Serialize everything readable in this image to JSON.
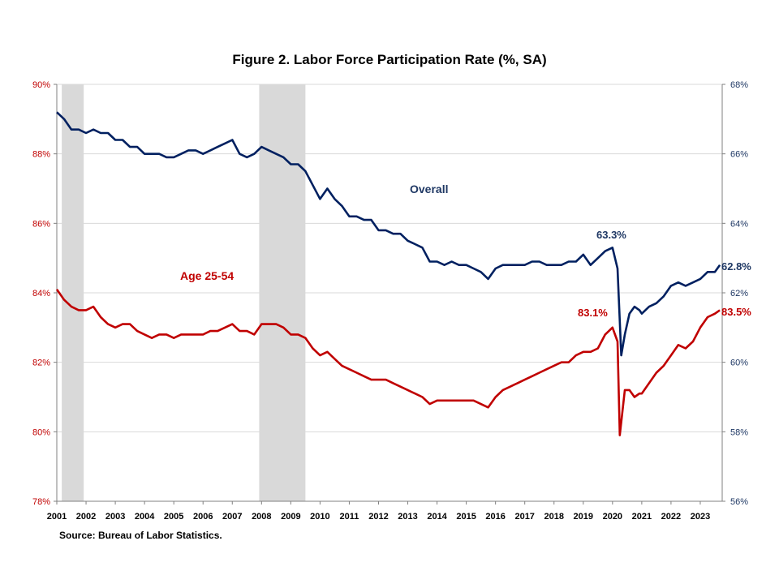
{
  "chart_data": {
    "type": "line",
    "title": "Figure 2. Labor Force Participation  Rate (%, SA)",
    "source": "Source: Bureau of Labor Statistics.",
    "x_ticks": [
      "2001",
      "2002",
      "2003",
      "2004",
      "2005",
      "2006",
      "2007",
      "2008",
      "2009",
      "2010",
      "2011",
      "2012",
      "2013",
      "2014",
      "2015",
      "2016",
      "2017",
      "2018",
      "2019",
      "2020",
      "2021",
      "2022",
      "2023"
    ],
    "y_left": {
      "range": [
        78,
        90
      ],
      "ticks": [
        "78%",
        "80%",
        "82%",
        "84%",
        "86%",
        "88%",
        "90%"
      ],
      "color": "#c00000"
    },
    "y_right": {
      "range": [
        56,
        68
      ],
      "ticks": [
        "56%",
        "58%",
        "60%",
        "62%",
        "64%",
        "66%",
        "68%"
      ],
      "color": "#1f3864"
    },
    "recessions": [
      {
        "start": 2001.17,
        "end": 2001.92
      },
      {
        "start": 2007.92,
        "end": 2009.5
      }
    ],
    "grid": true,
    "series": [
      {
        "name": "Overall",
        "axis": "right",
        "color": "#002060",
        "points": [
          [
            2001.0,
            67.2
          ],
          [
            2001.25,
            67.0
          ],
          [
            2001.5,
            66.7
          ],
          [
            2001.75,
            66.7
          ],
          [
            2002.0,
            66.6
          ],
          [
            2002.25,
            66.7
          ],
          [
            2002.5,
            66.6
          ],
          [
            2002.75,
            66.6
          ],
          [
            2003.0,
            66.4
          ],
          [
            2003.25,
            66.4
          ],
          [
            2003.5,
            66.2
          ],
          [
            2003.75,
            66.2
          ],
          [
            2004.0,
            66.0
          ],
          [
            2004.25,
            66.0
          ],
          [
            2004.5,
            66.0
          ],
          [
            2004.75,
            65.9
          ],
          [
            2005.0,
            65.9
          ],
          [
            2005.25,
            66.0
          ],
          [
            2005.5,
            66.1
          ],
          [
            2005.75,
            66.1
          ],
          [
            2006.0,
            66.0
          ],
          [
            2006.25,
            66.1
          ],
          [
            2006.5,
            66.2
          ],
          [
            2006.75,
            66.3
          ],
          [
            2007.0,
            66.4
          ],
          [
            2007.25,
            66.0
          ],
          [
            2007.5,
            65.9
          ],
          [
            2007.75,
            66.0
          ],
          [
            2008.0,
            66.2
          ],
          [
            2008.25,
            66.1
          ],
          [
            2008.5,
            66.0
          ],
          [
            2008.75,
            65.9
          ],
          [
            2009.0,
            65.7
          ],
          [
            2009.25,
            65.7
          ],
          [
            2009.5,
            65.5
          ],
          [
            2009.75,
            65.1
          ],
          [
            2010.0,
            64.7
          ],
          [
            2010.25,
            65.0
          ],
          [
            2010.5,
            64.7
          ],
          [
            2010.75,
            64.5
          ],
          [
            2011.0,
            64.2
          ],
          [
            2011.25,
            64.2
          ],
          [
            2011.5,
            64.1
          ],
          [
            2011.75,
            64.1
          ],
          [
            2012.0,
            63.8
          ],
          [
            2012.25,
            63.8
          ],
          [
            2012.5,
            63.7
          ],
          [
            2012.75,
            63.7
          ],
          [
            2013.0,
            63.5
          ],
          [
            2013.25,
            63.4
          ],
          [
            2013.5,
            63.3
          ],
          [
            2013.75,
            62.9
          ],
          [
            2014.0,
            62.9
          ],
          [
            2014.25,
            62.8
          ],
          [
            2014.5,
            62.9
          ],
          [
            2014.75,
            62.8
          ],
          [
            2015.0,
            62.8
          ],
          [
            2015.25,
            62.7
          ],
          [
            2015.5,
            62.6
          ],
          [
            2015.75,
            62.4
          ],
          [
            2016.0,
            62.7
          ],
          [
            2016.25,
            62.8
          ],
          [
            2016.5,
            62.8
          ],
          [
            2016.75,
            62.8
          ],
          [
            2017.0,
            62.8
          ],
          [
            2017.25,
            62.9
          ],
          [
            2017.5,
            62.9
          ],
          [
            2017.75,
            62.8
          ],
          [
            2018.0,
            62.8
          ],
          [
            2018.25,
            62.8
          ],
          [
            2018.5,
            62.9
          ],
          [
            2018.75,
            62.9
          ],
          [
            2019.0,
            63.1
          ],
          [
            2019.25,
            62.8
          ],
          [
            2019.5,
            63.0
          ],
          [
            2019.75,
            63.2
          ],
          [
            2020.0,
            63.3
          ],
          [
            2020.17,
            62.7
          ],
          [
            2020.3,
            60.2
          ],
          [
            2020.42,
            60.8
          ],
          [
            2020.58,
            61.4
          ],
          [
            2020.75,
            61.6
          ],
          [
            2020.92,
            61.5
          ],
          [
            2021.0,
            61.4
          ],
          [
            2021.25,
            61.6
          ],
          [
            2021.5,
            61.7
          ],
          [
            2021.75,
            61.9
          ],
          [
            2022.0,
            62.2
          ],
          [
            2022.25,
            62.3
          ],
          [
            2022.5,
            62.2
          ],
          [
            2022.75,
            62.3
          ],
          [
            2023.0,
            62.4
          ],
          [
            2023.25,
            62.6
          ],
          [
            2023.5,
            62.6
          ],
          [
            2023.67,
            62.8
          ]
        ]
      },
      {
        "name": "Age 25-54",
        "axis": "left",
        "color": "#c00000",
        "points": [
          [
            2001.0,
            84.1
          ],
          [
            2001.25,
            83.8
          ],
          [
            2001.5,
            83.6
          ],
          [
            2001.75,
            83.5
          ],
          [
            2002.0,
            83.5
          ],
          [
            2002.25,
            83.6
          ],
          [
            2002.5,
            83.3
          ],
          [
            2002.75,
            83.1
          ],
          [
            2003.0,
            83.0
          ],
          [
            2003.25,
            83.1
          ],
          [
            2003.5,
            83.1
          ],
          [
            2003.75,
            82.9
          ],
          [
            2004.0,
            82.8
          ],
          [
            2004.25,
            82.7
          ],
          [
            2004.5,
            82.8
          ],
          [
            2004.75,
            82.8
          ],
          [
            2005.0,
            82.7
          ],
          [
            2005.25,
            82.8
          ],
          [
            2005.5,
            82.8
          ],
          [
            2005.75,
            82.8
          ],
          [
            2006.0,
            82.8
          ],
          [
            2006.25,
            82.9
          ],
          [
            2006.5,
            82.9
          ],
          [
            2006.75,
            83.0
          ],
          [
            2007.0,
            83.1
          ],
          [
            2007.25,
            82.9
          ],
          [
            2007.5,
            82.9
          ],
          [
            2007.75,
            82.8
          ],
          [
            2008.0,
            83.1
          ],
          [
            2008.25,
            83.1
          ],
          [
            2008.5,
            83.1
          ],
          [
            2008.75,
            83.0
          ],
          [
            2009.0,
            82.8
          ],
          [
            2009.25,
            82.8
          ],
          [
            2009.5,
            82.7
          ],
          [
            2009.75,
            82.4
          ],
          [
            2010.0,
            82.2
          ],
          [
            2010.25,
            82.3
          ],
          [
            2010.5,
            82.1
          ],
          [
            2010.75,
            81.9
          ],
          [
            2011.0,
            81.8
          ],
          [
            2011.25,
            81.7
          ],
          [
            2011.5,
            81.6
          ],
          [
            2011.75,
            81.5
          ],
          [
            2012.0,
            81.5
          ],
          [
            2012.25,
            81.5
          ],
          [
            2012.5,
            81.4
          ],
          [
            2012.75,
            81.3
          ],
          [
            2013.0,
            81.2
          ],
          [
            2013.25,
            81.1
          ],
          [
            2013.5,
            81.0
          ],
          [
            2013.75,
            80.8
          ],
          [
            2014.0,
            80.9
          ],
          [
            2014.25,
            80.9
          ],
          [
            2014.5,
            80.9
          ],
          [
            2014.75,
            80.9
          ],
          [
            2015.0,
            80.9
          ],
          [
            2015.25,
            80.9
          ],
          [
            2015.5,
            80.8
          ],
          [
            2015.75,
            80.7
          ],
          [
            2016.0,
            81.0
          ],
          [
            2016.25,
            81.2
          ],
          [
            2016.5,
            81.3
          ],
          [
            2016.75,
            81.4
          ],
          [
            2017.0,
            81.5
          ],
          [
            2017.25,
            81.6
          ],
          [
            2017.5,
            81.7
          ],
          [
            2017.75,
            81.8
          ],
          [
            2018.0,
            81.9
          ],
          [
            2018.25,
            82.0
          ],
          [
            2018.5,
            82.0
          ],
          [
            2018.75,
            82.2
          ],
          [
            2019.0,
            82.3
          ],
          [
            2019.25,
            82.3
          ],
          [
            2019.5,
            82.4
          ],
          [
            2019.75,
            82.8
          ],
          [
            2020.0,
            83.0
          ],
          [
            2020.17,
            82.6
          ],
          [
            2020.25,
            79.9
          ],
          [
            2020.42,
            81.2
          ],
          [
            2020.58,
            81.2
          ],
          [
            2020.75,
            81.0
          ],
          [
            2020.92,
            81.1
          ],
          [
            2021.0,
            81.1
          ],
          [
            2021.25,
            81.4
          ],
          [
            2021.5,
            81.7
          ],
          [
            2021.75,
            81.9
          ],
          [
            2022.0,
            82.2
          ],
          [
            2022.25,
            82.5
          ],
          [
            2022.5,
            82.4
          ],
          [
            2022.75,
            82.6
          ],
          [
            2023.0,
            83.0
          ],
          [
            2023.25,
            83.3
          ],
          [
            2023.5,
            83.4
          ],
          [
            2023.67,
            83.5
          ]
        ]
      }
    ],
    "annotations": [
      {
        "text": "Overall",
        "color": "#1f3864"
      },
      {
        "text": "Age 25-54",
        "color": "#c00000"
      },
      {
        "text": "63.3%",
        "color": "#1f3864"
      },
      {
        "text": "62.8%",
        "color": "#1f3864"
      },
      {
        "text": "83.1%",
        "color": "#c00000"
      },
      {
        "text": "83.5%",
        "color": "#c00000"
      }
    ]
  }
}
